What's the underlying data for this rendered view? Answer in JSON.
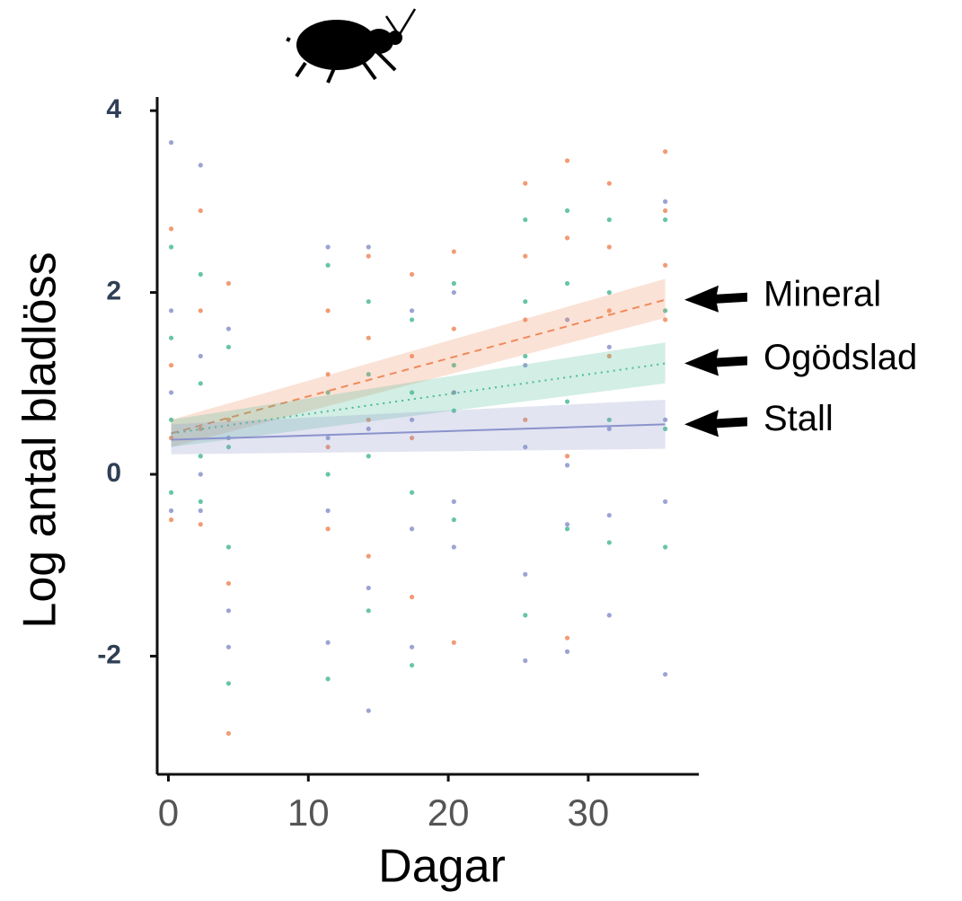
{
  "chart_data": {
    "type": "scatter",
    "xlabel": "Dagar",
    "ylabel": "Log antal bladlöss",
    "xlim": [
      -0.8,
      37.9
    ],
    "ylim": [
      -3.3,
      4.15
    ],
    "xticks": [
      0,
      10,
      20,
      30
    ],
    "yticks": [
      4,
      2,
      0,
      -2
    ],
    "series": [
      {
        "name": "Mineral",
        "color": "#f08a5d",
        "dash": "8,6",
        "x": [
          0.2,
          0.2,
          0.2,
          0.2,
          2.3,
          2.3,
          2.3,
          2.3,
          4.3,
          4.3,
          4.3,
          4.3,
          11.4,
          11.4,
          11.4,
          11.4,
          14.3,
          14.3,
          14.3,
          14.3,
          17.4,
          17.4,
          17.4,
          17.4,
          20.4,
          20.4,
          20.4,
          20.4,
          25.5,
          25.5,
          25.5,
          25.5,
          28.5,
          28.5,
          28.5,
          28.5,
          31.5,
          31.5,
          31.5,
          31.5,
          35.5,
          35.5,
          35.5,
          35.5
        ],
        "values": [
          2.7,
          1.2,
          0.4,
          -0.5,
          2.9,
          1.8,
          0.5,
          -0.55,
          2.1,
          0.6,
          -1.2,
          -2.85,
          1.8,
          1.1,
          0.3,
          -0.6,
          2.4,
          1.5,
          0.6,
          -0.9,
          2.2,
          1.3,
          0.4,
          -1.35,
          2.45,
          1.6,
          0.9,
          -1.85,
          3.2,
          2.4,
          1.7,
          0.6,
          3.45,
          2.6,
          0.2,
          -1.8,
          3.2,
          2.5,
          1.8,
          1.3,
          3.55,
          2.9,
          2.3,
          1.7
        ],
        "fit": {
          "x": [
            0.2,
            35.5
          ],
          "values": [
            0.45,
            1.92
          ],
          "lower": [
            0.3,
            1.72
          ],
          "upper": [
            0.6,
            2.15
          ]
        }
      },
      {
        "name": "Ogödslad",
        "color": "#4dbb98",
        "dash": "2,5",
        "x": [
          0.2,
          0.2,
          0.2,
          0.2,
          2.3,
          2.3,
          2.3,
          2.3,
          4.3,
          4.3,
          4.3,
          4.3,
          11.4,
          11.4,
          11.4,
          11.4,
          14.3,
          14.3,
          14.3,
          14.3,
          17.4,
          17.4,
          17.4,
          17.4,
          20.4,
          20.4,
          20.4,
          20.4,
          25.5,
          25.5,
          25.5,
          25.5,
          28.5,
          28.5,
          28.5,
          28.5,
          31.5,
          31.5,
          31.5,
          31.5,
          35.5,
          35.5,
          35.5,
          35.5
        ],
        "values": [
          2.5,
          1.5,
          0.6,
          -0.2,
          2.2,
          1.0,
          0.2,
          -0.3,
          1.4,
          0.3,
          -0.8,
          -2.3,
          2.3,
          0.9,
          0.0,
          -2.25,
          1.9,
          1.1,
          0.2,
          -1.5,
          1.7,
          0.9,
          -0.2,
          -2.1,
          2.1,
          1.2,
          0.7,
          -0.5,
          2.8,
          1.9,
          1.3,
          -1.55,
          2.9,
          2.1,
          0.8,
          -0.6,
          2.8,
          2.0,
          0.6,
          -0.75,
          2.8,
          1.8,
          0.5,
          -0.8
        ],
        "fit": {
          "x": [
            0.2,
            35.5
          ],
          "values": [
            0.45,
            1.22
          ],
          "lower": [
            0.3,
            1.0
          ],
          "upper": [
            0.6,
            1.45
          ]
        }
      },
      {
        "name": "Stall",
        "color": "#8b93cc",
        "dash": "none",
        "x": [
          0.2,
          0.2,
          0.2,
          0.2,
          2.3,
          2.3,
          2.3,
          2.3,
          4.3,
          4.3,
          4.3,
          4.3,
          11.4,
          11.4,
          11.4,
          11.4,
          14.3,
          14.3,
          14.3,
          14.3,
          17.4,
          17.4,
          17.4,
          17.4,
          20.4,
          20.4,
          20.4,
          20.4,
          25.5,
          25.5,
          25.5,
          25.5,
          28.5,
          28.5,
          28.5,
          28.5,
          31.5,
          31.5,
          31.5,
          31.5,
          35.5,
          35.5,
          35.5,
          35.5
        ],
        "values": [
          3.65,
          1.8,
          0.9,
          -0.4,
          3.4,
          1.3,
          0.0,
          -0.4,
          1.6,
          0.4,
          -1.5,
          -1.9,
          2.5,
          0.4,
          -0.4,
          -1.85,
          2.5,
          0.5,
          -1.25,
          -2.6,
          1.8,
          0.6,
          -0.6,
          -1.9,
          2.0,
          0.9,
          -0.3,
          -0.8,
          1.2,
          0.3,
          -1.1,
          -2.05,
          1.7,
          0.1,
          -0.55,
          -1.95,
          1.4,
          0.5,
          -0.45,
          -1.55,
          3.0,
          0.6,
          -0.3,
          -2.2
        ],
        "fit": {
          "x": [
            0.2,
            35.5
          ],
          "values": [
            0.38,
            0.55
          ],
          "lower": [
            0.22,
            0.28
          ],
          "upper": [
            0.55,
            0.82
          ]
        }
      }
    ]
  }
}
